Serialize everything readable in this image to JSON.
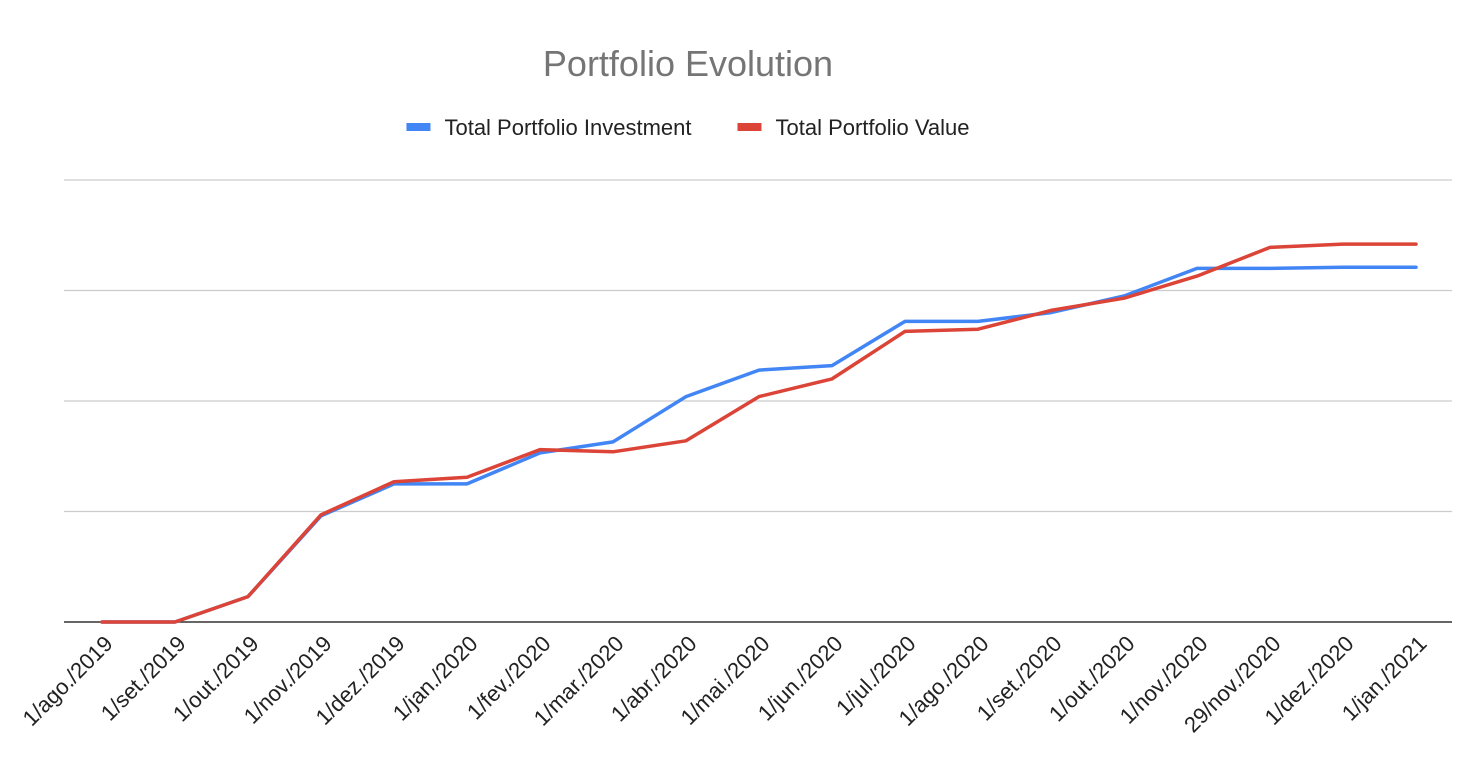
{
  "chart_data": {
    "type": "line",
    "title": "Portfolio Evolution",
    "xlabel": "",
    "ylabel": "",
    "legend_position": "top",
    "grid": true,
    "y_tick_labels_visible": false,
    "ylim": [
      0,
      4
    ],
    "categories": [
      "1/ago./2019",
      "1/set./2019",
      "1/out./2019",
      "1/nov./2019",
      "1/dez./2019",
      "1/jan./2020",
      "1/fev./2020",
      "1/mar./2020",
      "1/abr./2020",
      "1/mai./2020",
      "1/jun./2020",
      "1/jul./2020",
      "1/ago./2020",
      "1/set./2020",
      "1/out./2020",
      "1/nov./2020",
      "29/nov./2020",
      "1/dez./2020",
      "1/jan./2021"
    ],
    "series": [
      {
        "name": "Total Portfolio Investment",
        "color": "#4285F4",
        "values": [
          0,
          0,
          0.23,
          0.96,
          1.25,
          1.25,
          1.53,
          1.63,
          2.04,
          2.28,
          2.32,
          2.72,
          2.72,
          2.8,
          2.95,
          3.2,
          3.2,
          3.21,
          3.21
        ]
      },
      {
        "name": "Total Portfolio Value",
        "color": "#DB4437",
        "values": [
          0,
          0,
          0.23,
          0.97,
          1.27,
          1.31,
          1.56,
          1.54,
          1.64,
          2.04,
          2.2,
          2.63,
          2.65,
          2.82,
          2.93,
          3.13,
          3.39,
          3.42,
          3.42
        ]
      }
    ]
  }
}
